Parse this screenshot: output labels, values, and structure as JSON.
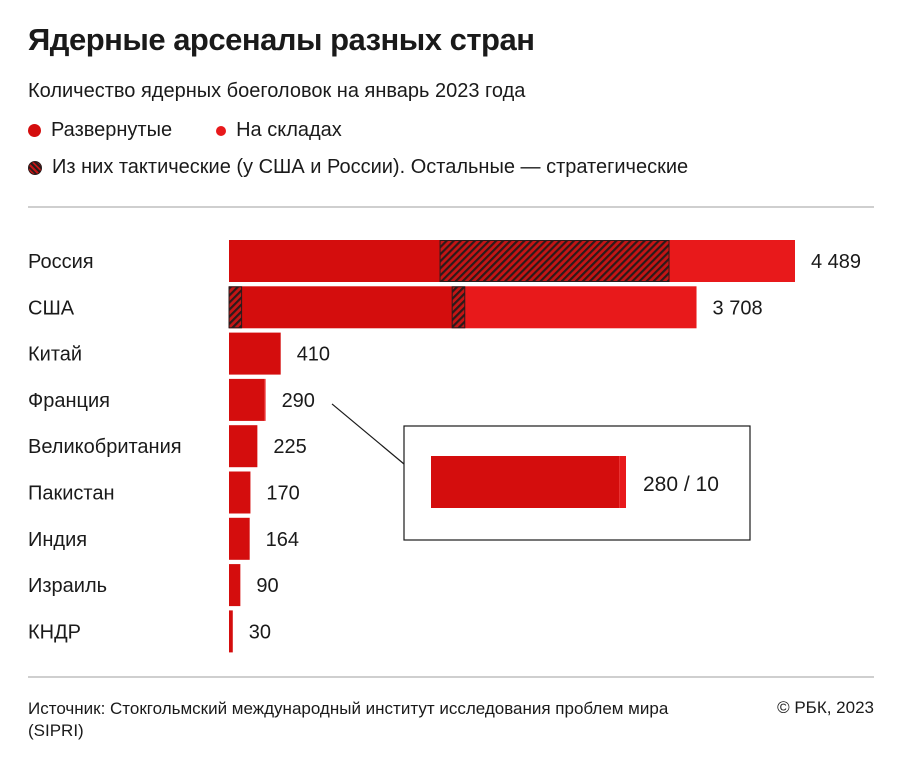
{
  "header": {
    "title": "Ядерные арсеналы разных стран",
    "subtitle": "Количество ядерных боеголовок на январь 2023 года"
  },
  "legend": {
    "deployed": "Развернутые",
    "stored": "На складах",
    "tactical": "Из них тактические (у США и России). Остальные — стратегические"
  },
  "colors": {
    "deployed": "#d40d0d",
    "stored": "#e8191b",
    "hatch_dark": "#2b1a1a"
  },
  "chart_data": {
    "type": "bar",
    "orientation": "horizontal",
    "stacked": true,
    "categories": [
      "Россия",
      "США",
      "Китай",
      "Франция",
      "Великобритания",
      "Пакистан",
      "Индия",
      "Израиль",
      "КНДР"
    ],
    "totals": [
      4489,
      3708,
      410,
      290,
      225,
      170,
      164,
      90,
      30
    ],
    "total_labels": [
      "4 489",
      "3 708",
      "410",
      "290",
      "225",
      "170",
      "164",
      "90",
      "30"
    ],
    "series": [
      {
        "name": "Развернутые",
        "values": [
          1674,
          1770,
          410,
          280,
          225,
          170,
          164,
          90,
          30
        ]
      },
      {
        "name": "На складах",
        "values": [
          2815,
          1938,
          0,
          10,
          0,
          0,
          0,
          0,
          0
        ]
      }
    ],
    "tactical_segments": [
      {
        "category": "Россия",
        "start": 1674,
        "end": 3490
      },
      {
        "category": "США",
        "start": 0,
        "end": 100
      },
      {
        "category": "США",
        "start": 1770,
        "end": 1870
      }
    ],
    "callout": {
      "category": "Франция",
      "deployed": 280,
      "stored": 10,
      "label": "280 / 10"
    }
  },
  "footer": {
    "source": "Источник: Стокгольмский международный институт исследования проблем мира (SIPRI)",
    "copyright": "© РБК, 2023"
  }
}
